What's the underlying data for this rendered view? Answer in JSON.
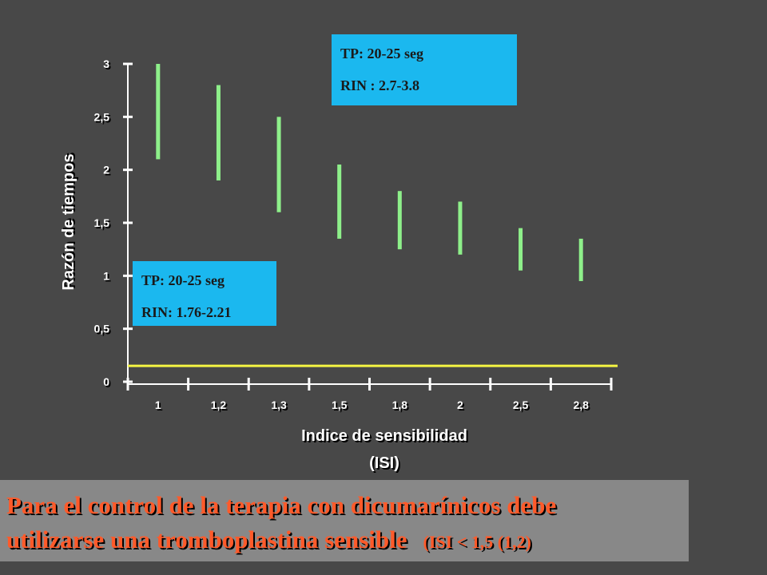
{
  "chart_data": {
    "type": "range-bar",
    "ylabel": "Razón de tiempos",
    "xlabel": [
      "Indice de sensibilidad",
      "(ISI)"
    ],
    "categories": [
      "1",
      "1,2",
      "1,3",
      "1,5",
      "1,8",
      "2",
      "2,5",
      "2,8"
    ],
    "low": [
      2.1,
      1.9,
      1.6,
      1.35,
      1.25,
      1.2,
      1.05,
      0.95
    ],
    "high": [
      3.0,
      2.8,
      2.5,
      2.05,
      1.8,
      1.7,
      1.45,
      1.35
    ],
    "color": "#8ef08a",
    "hline": {
      "value": 0.15,
      "color": "#f5f542"
    },
    "ylim": [
      0,
      3
    ],
    "yticks": [
      0,
      {
        "value": 0.5,
        "label": "0,5"
      },
      1,
      {
        "value": 1.5,
        "label": "1,5"
      },
      2,
      {
        "value": 2.5,
        "label": "2,5"
      },
      3
    ],
    "annotations": [
      {
        "lines": [
          "TP: 20-25 seg",
          "RIN : 2.7-3.8"
        ],
        "color": "#1bb8ef"
      },
      {
        "lines": [
          "TP: 20-25 seg",
          "RIN: 1.76-2.21"
        ],
        "color": "#1bb8ef"
      }
    ],
    "footer": {
      "lines": [
        "Para el control de la terapia con dicumarínicos debe",
        "utilizarse una tromboplastina sensible"
      ],
      "note": "(ISI < 1,5 (1,2)"
    }
  }
}
